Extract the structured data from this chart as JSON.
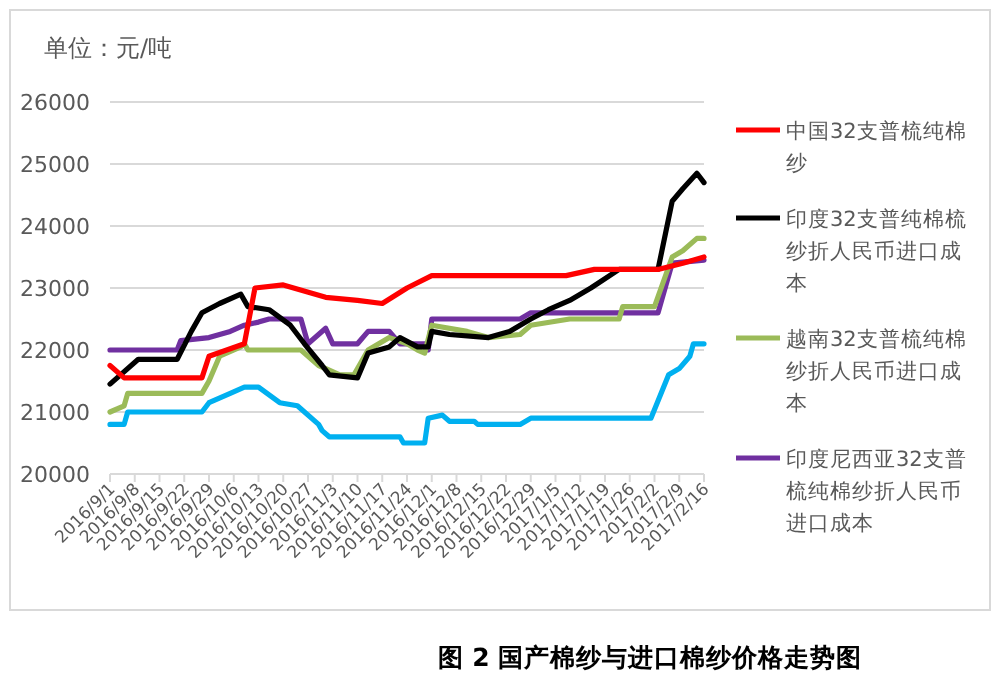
{
  "chart_data": {
    "type": "line",
    "ylabel": "单位：元/吨",
    "annotations": [
      "图 2 国产棉纱与进口棉纱价格走势图"
    ],
    "xlim": [
      "2016-09-01",
      "2017-02-16"
    ],
    "ylim": [
      20000,
      26000
    ],
    "yticks": [
      20000,
      21000,
      22000,
      23000,
      24000,
      25000,
      26000
    ],
    "xticks": [
      {
        "value": "2016-09-01",
        "label": "2016/9/1"
      },
      {
        "value": "2016-09-08",
        "label": "2016/9/8"
      },
      {
        "value": "2016-09-15",
        "label": "2016/9/15"
      },
      {
        "value": "2016-09-22",
        "label": "2016/9/22"
      },
      {
        "value": "2016-09-29",
        "label": "2016/9/29"
      },
      {
        "value": "2016-10-06",
        "label": "2016/10/6"
      },
      {
        "value": "2016-10-13",
        "label": "2016/10/13"
      },
      {
        "value": "2016-10-20",
        "label": "2016/10/20"
      },
      {
        "value": "2016-10-27",
        "label": "2016/10/27"
      },
      {
        "value": "2016-11-03",
        "label": "2016/11/3"
      },
      {
        "value": "2016-11-10",
        "label": "2016/11/10"
      },
      {
        "value": "2016-11-17",
        "label": "2016/11/17"
      },
      {
        "value": "2016-11-24",
        "label": "2016/11/24"
      },
      {
        "value": "2016-12-01",
        "label": "2016/12/1"
      },
      {
        "value": "2016-12-08",
        "label": "2016/12/8"
      },
      {
        "value": "2016-12-15",
        "label": "2016/12/15"
      },
      {
        "value": "2016-12-22",
        "label": "2016/12/22"
      },
      {
        "value": "2016-12-29",
        "label": "2016/12/29"
      },
      {
        "value": "2017-01-05",
        "label": "2017/1/5"
      },
      {
        "value": "2017-01-12",
        "label": "2017/1/12"
      },
      {
        "value": "2017-01-19",
        "label": "2017/1/19"
      },
      {
        "value": "2017-01-26",
        "label": "2017/1/26"
      },
      {
        "value": "2017-02-02",
        "label": "2017/2/2"
      },
      {
        "value": "2017-02-09",
        "label": "2017/2/9"
      },
      {
        "value": "2017-02-16",
        "label": "2017/2/16"
      }
    ],
    "grid": "y",
    "legend": "right",
    "marker": "none",
    "line_style": "solid",
    "series": [
      {
        "name": "中国32支普梳纯棉纱",
        "color": "#ff0000",
        "x": [
          "2016-09-01",
          "2016-09-05",
          "2016-09-27",
          "2016-09-29",
          "2016-10-09",
          "2016-10-12",
          "2016-10-20",
          "2016-11-01",
          "2016-11-10",
          "2016-11-17",
          "2016-11-24",
          "2016-12-01",
          "2017-01-08",
          "2017-01-16",
          "2017-02-03",
          "2017-02-10",
          "2017-02-16"
        ],
        "values": [
          21750,
          21550,
          21550,
          21900,
          22100,
          23000,
          23050,
          22850,
          22800,
          22750,
          23000,
          23200,
          23200,
          23300,
          23300,
          23400,
          23500
        ]
      },
      {
        "name": "印度32支普纯棉梳纱折人民币进口成本",
        "color": "#000000",
        "x": [
          "2016-09-01",
          "2016-09-09",
          "2016-09-20",
          "2016-09-24",
          "2016-09-27",
          "2016-10-02",
          "2016-10-08",
          "2016-10-10",
          "2016-10-16",
          "2016-10-22",
          "2016-10-26",
          "2016-10-31",
          "2016-11-02",
          "2016-11-10",
          "2016-11-13",
          "2016-11-19",
          "2016-11-22",
          "2016-11-27",
          "2016-11-30",
          "2016-12-01",
          "2016-12-06",
          "2016-12-17",
          "2016-12-23",
          "2016-12-29",
          "2017-01-03",
          "2017-01-09",
          "2017-01-15",
          "2017-01-23",
          "2017-02-03",
          "2017-02-07",
          "2017-02-10",
          "2017-02-14",
          "2017-02-16"
        ],
        "values": [
          21450,
          21850,
          21850,
          22300,
          22600,
          22750,
          22900,
          22700,
          22650,
          22400,
          22100,
          21750,
          21600,
          21550,
          21950,
          22050,
          22200,
          22050,
          22050,
          22300,
          22250,
          22200,
          22300,
          22500,
          22650,
          22800,
          23000,
          23300,
          23300,
          24400,
          24600,
          24850,
          24700
        ]
      },
      {
        "name": "越南32支普梳纯棉纱折人民币进口成本",
        "color": "#9bbb59",
        "x": [
          "2016-09-01",
          "2016-09-05",
          "2016-09-06",
          "2016-09-27",
          "2016-09-29",
          "2016-10-02",
          "2016-10-08",
          "2016-10-09",
          "2016-10-10",
          "2016-10-25",
          "2016-10-30",
          "2016-11-05",
          "2016-11-09",
          "2016-11-13",
          "2016-11-19",
          "2016-11-24",
          "2016-11-27",
          "2016-11-29",
          "2016-12-01",
          "2016-12-11",
          "2016-12-17",
          "2016-12-26",
          "2016-12-29",
          "2017-01-09",
          "2017-01-23",
          "2017-01-24",
          "2017-02-02",
          "2017-02-07",
          "2017-02-10",
          "2017-02-14",
          "2017-02-16"
        ],
        "values": [
          21000,
          21100,
          21300,
          21300,
          21500,
          21900,
          22050,
          22100,
          22000,
          22000,
          21750,
          21600,
          21600,
          22000,
          22200,
          22100,
          22000,
          21950,
          22400,
          22300,
          22200,
          22250,
          22400,
          22500,
          22500,
          22700,
          22700,
          23500,
          23600,
          23800,
          23800
        ]
      },
      {
        "name": "印度尼西亚32支普梳纯棉纱折人民币进口成本",
        "color": "#7030a0",
        "x": [
          "2016-09-01",
          "2016-09-20",
          "2016-09-21",
          "2016-09-29",
          "2016-10-05",
          "2016-10-09",
          "2016-10-13",
          "2016-10-16",
          "2016-10-25",
          "2016-10-27",
          "2016-11-01",
          "2016-11-03",
          "2016-11-10",
          "2016-11-13",
          "2016-11-19",
          "2016-11-22",
          "2016-11-29",
          "2016-11-30",
          "2016-12-01",
          "2016-12-26",
          "2016-12-29",
          "2017-02-03",
          "2017-02-07",
          "2017-02-16"
        ],
        "values": [
          22000,
          22000,
          22150,
          22200,
          22300,
          22400,
          22450,
          22500,
          22500,
          22100,
          22350,
          22100,
          22100,
          22300,
          22300,
          22100,
          22100,
          22000,
          22500,
          22500,
          22600,
          22600,
          23400,
          23450
        ]
      },
      {
        "color": "#00b0f0",
        "x": [
          "2016-09-01",
          "2016-09-05",
          "2016-09-06",
          "2016-09-27",
          "2016-09-29",
          "2016-10-05",
          "2016-10-09",
          "2016-10-13",
          "2016-10-19",
          "2016-10-24",
          "2016-10-30",
          "2016-10-31",
          "2016-11-02",
          "2016-11-22",
          "2016-11-23",
          "2016-11-29",
          "2016-11-30",
          "2016-12-04",
          "2016-12-06",
          "2016-12-13",
          "2016-12-14",
          "2016-12-26",
          "2016-12-29",
          "2017-02-01",
          "2017-02-06",
          "2017-02-09",
          "2017-02-12",
          "2017-02-13",
          "2017-02-16"
        ],
        "values": [
          20800,
          20800,
          21000,
          21000,
          21150,
          21300,
          21400,
          21400,
          21150,
          21100,
          20800,
          20700,
          20600,
          20600,
          20500,
          20500,
          20900,
          20950,
          20850,
          20850,
          20800,
          20800,
          20900,
          20900,
          21600,
          21700,
          21900,
          22100,
          22100
        ]
      }
    ]
  }
}
